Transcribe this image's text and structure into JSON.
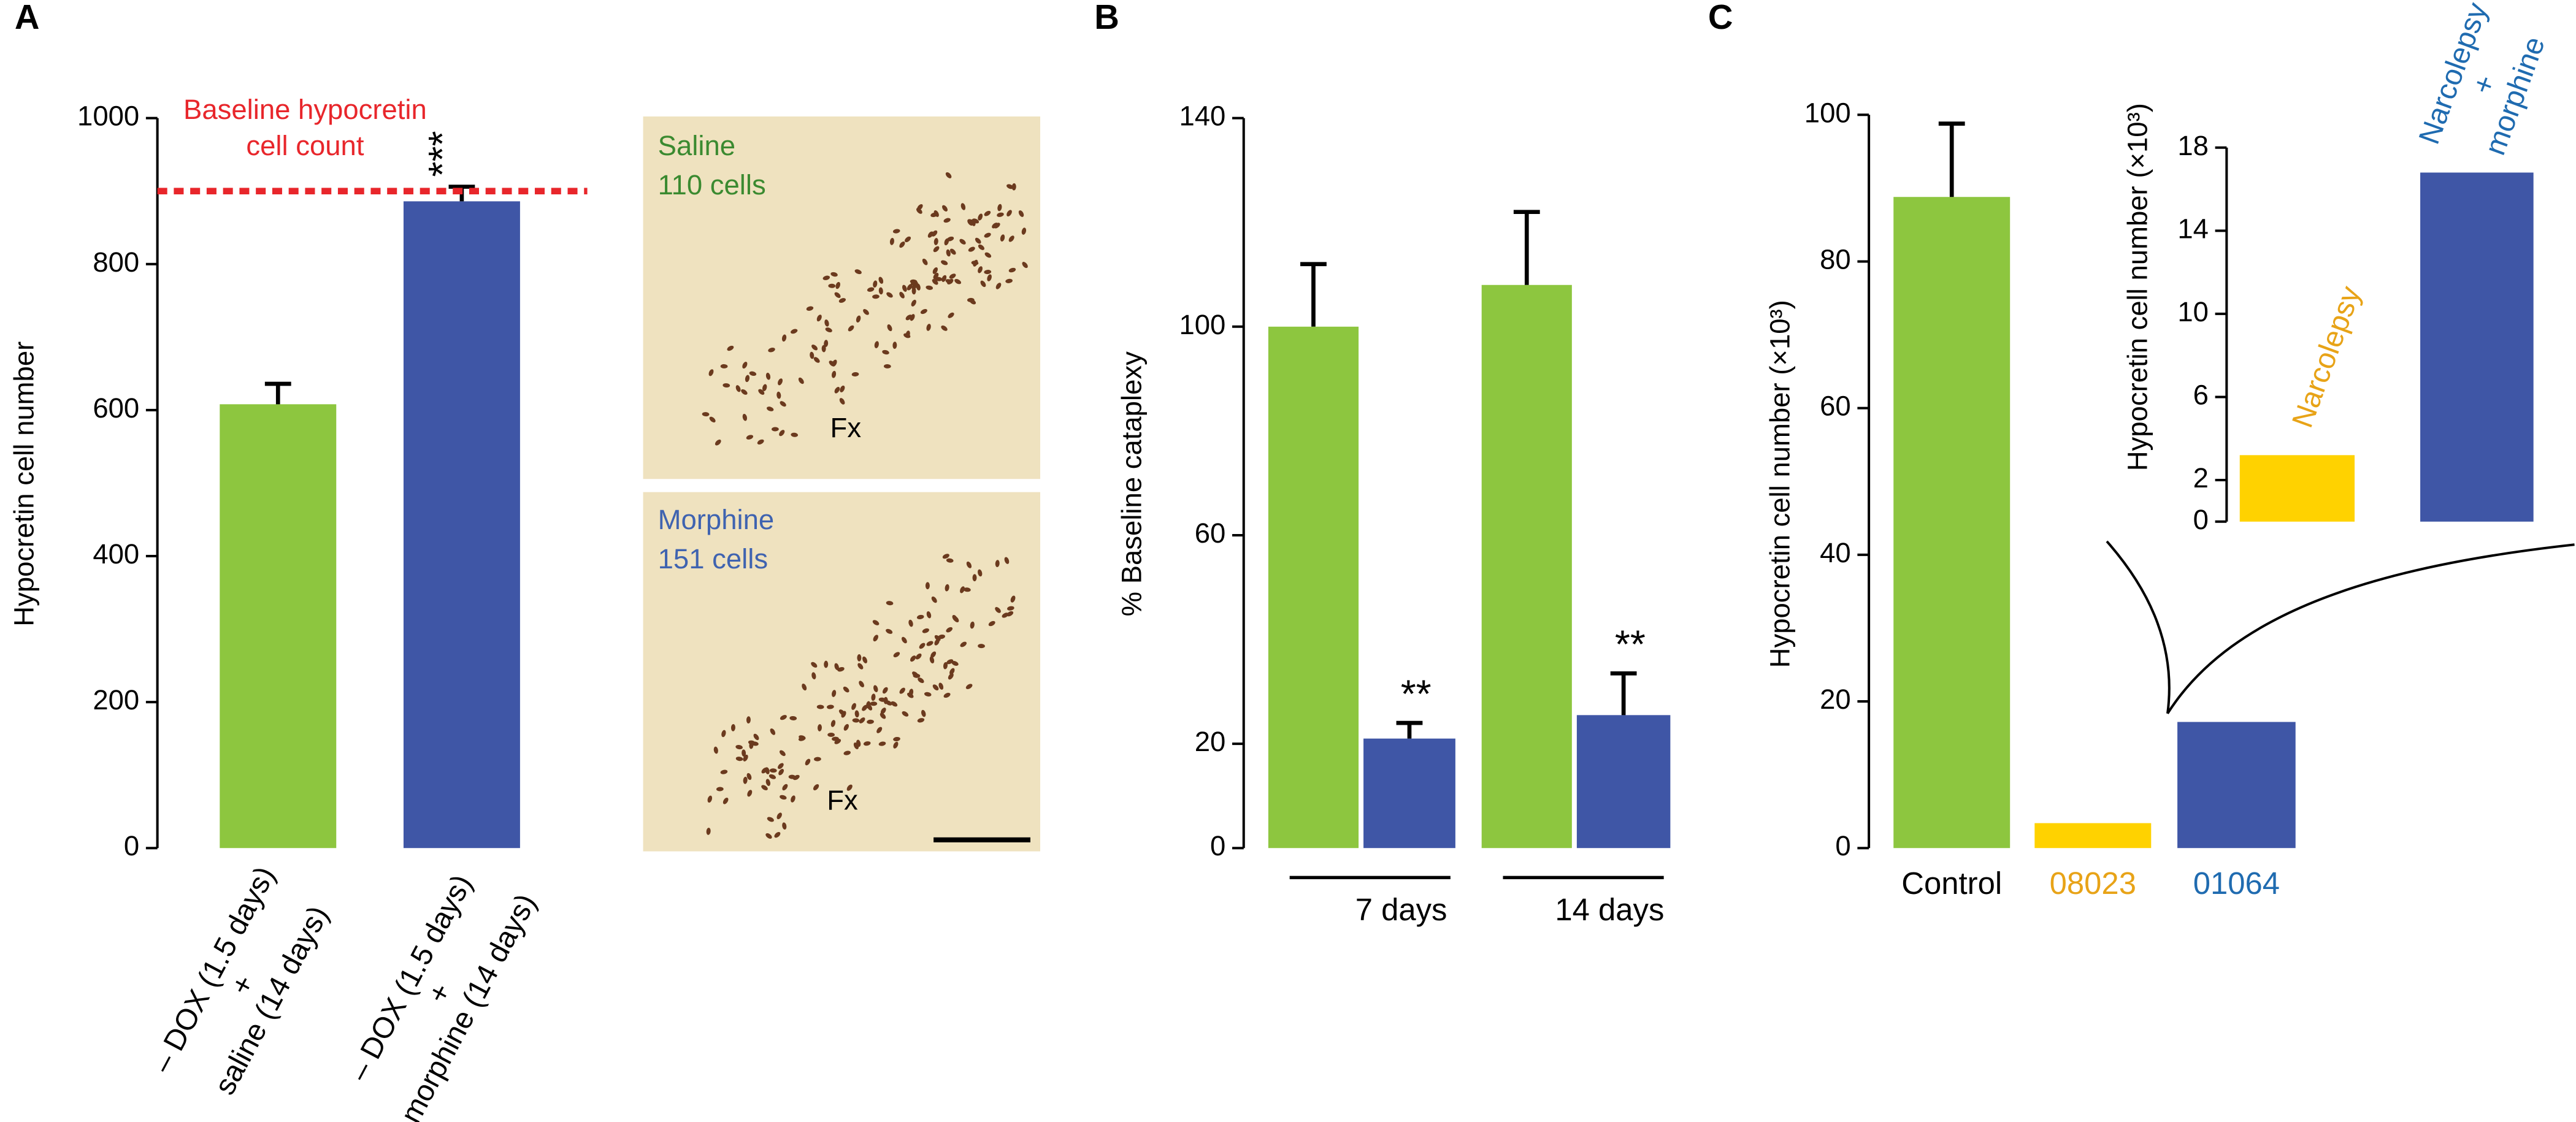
{
  "chart_data": [
    {
      "type": "bar",
      "panel": "A",
      "y_label": "Hypocretin cell number",
      "categories": [
        [
          "– DOX (1.5 days)",
          "+",
          "saline (14 days)"
        ],
        [
          "– DOX (1.5 days)",
          "+",
          "morphine (14 days)"
        ]
      ],
      "values": [
        608,
        886
      ],
      "errors": [
        28,
        20
      ],
      "colors": [
        "#8dc63f",
        "#3f56a6"
      ],
      "significance": [
        null,
        "***"
      ],
      "reference_line": {
        "value": 900,
        "label_lines": [
          "Baseline hypocretin",
          "cell count"
        ],
        "color": "#e8262b"
      },
      "ylim": [
        0,
        1000
      ],
      "yticks": [
        0,
        200,
        400,
        600,
        800,
        1000
      ],
      "grid": false
    },
    {
      "type": "bar",
      "panel": "B",
      "y_label": "% Baseline cataplexy",
      "categories": [
        "7 days",
        "14 days"
      ],
      "series": [
        {
          "color": "#8dc63f",
          "values": [
            100,
            108
          ],
          "errors": [
            12,
            14
          ]
        },
        {
          "color": "#3f56a6",
          "values": [
            21,
            25.5
          ],
          "errors": [
            3,
            8
          ],
          "significance": [
            "**",
            "**"
          ]
        }
      ],
      "ylim": [
        0,
        140
      ],
      "yticks": [
        0,
        20,
        60,
        100,
        140
      ],
      "grid": false
    },
    {
      "type": "bar",
      "panel": "C",
      "y_label": "Hypocretin cell number (×10³)",
      "categories": [
        "Control",
        "08023",
        "01064"
      ],
      "category_colors": [
        "#000000",
        "#e8a317",
        "#1f6bb0"
      ],
      "values": [
        88.8,
        3.4,
        17.2
      ],
      "errors": [
        10,
        null,
        null
      ],
      "colors": [
        "#8dc63f",
        "#ffd200",
        "#3f56a6"
      ],
      "ylim": [
        0,
        100
      ],
      "yticks": [
        0,
        20,
        40,
        60,
        80,
        100
      ],
      "grid": false
    },
    {
      "type": "bar",
      "y_label": "Hypocretin cell number (×10³)",
      "categories": [
        [
          "Narcolepsy"
        ],
        [
          "Narcolepsy",
          "+",
          "morphine"
        ]
      ],
      "category_colors": [
        "#e8a317",
        "#1f6bb0"
      ],
      "values": [
        3.2,
        16.8
      ],
      "colors": [
        "#ffd200",
        "#3f56a6"
      ],
      "ylim": [
        0,
        18
      ],
      "yticks": [
        0,
        2,
        6,
        10,
        14,
        18
      ],
      "grid": false
    }
  ],
  "micrographs": [
    {
      "label": "Saline",
      "count": "110 cells",
      "landmark": "Fx"
    },
    {
      "label": "Morphine",
      "count": "151 cells",
      "landmark": "Fx"
    }
  ]
}
